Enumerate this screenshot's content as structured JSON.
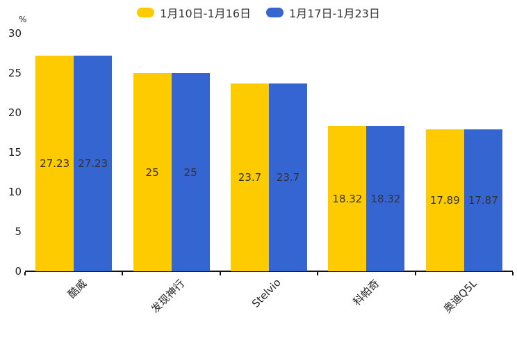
{
  "chart_data": {
    "type": "bar",
    "title": "",
    "categories": [
      "酷威",
      "发现神行",
      "Stelvio",
      "科帕奇",
      "奥迪Q5L"
    ],
    "series": [
      {
        "name": "1月10日-1月16日",
        "color": "#FECB00",
        "values": [
          27.23,
          25,
          23.7,
          18.32,
          17.89
        ]
      },
      {
        "name": "1月17日-1月23日",
        "color": "#3565D0",
        "values": [
          27.23,
          25,
          23.7,
          18.32,
          17.87
        ]
      }
    ],
    "xlabel": "",
    "ylabel": "%",
    "ylim": [
      0,
      30
    ],
    "yticks": [
      0,
      5,
      10,
      15,
      20,
      25,
      30
    ],
    "grid": false,
    "legend_position": "top-center",
    "value_labels": "inside-center",
    "axis_color": "#111111",
    "label_color": "#333333"
  }
}
